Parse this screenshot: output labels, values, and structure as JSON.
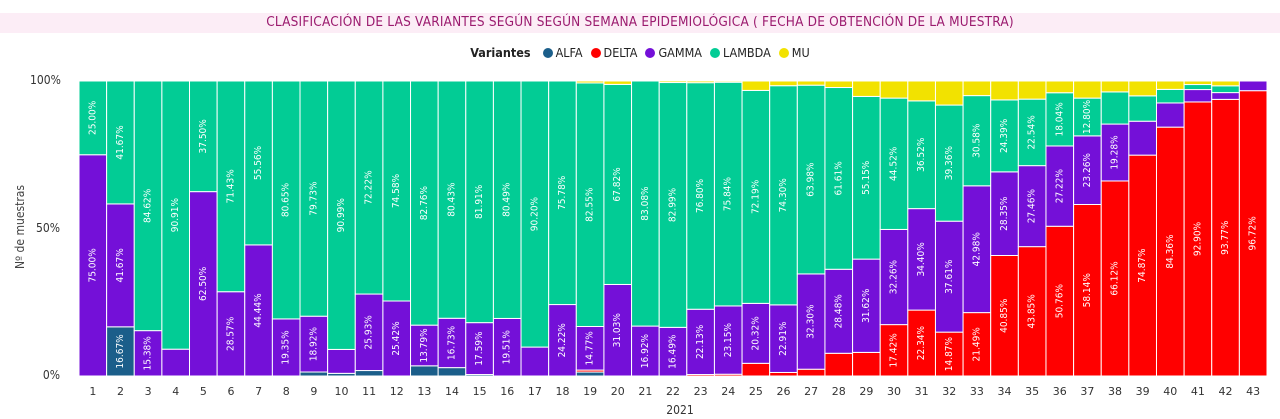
{
  "chart_data": {
    "type": "bar",
    "stacked": "percent",
    "title": "CLASIFICACIÓN DE LAS VARIANTES SEGÚN SEGÚN SEMANA EPIDEMIOLÓGICA ( FECHA DE OBTENCIÓN DE LA MUESTRA)",
    "legend_title": "Variantes",
    "legend_position": "top",
    "xlabel": "2021",
    "ylabel": "Nº de muestras",
    "yticks": [
      "0%",
      "50%",
      "100%"
    ],
    "ylim": [
      0,
      100
    ],
    "grid": false,
    "categories": [
      "1",
      "2",
      "3",
      "4",
      "5",
      "6",
      "7",
      "8",
      "9",
      "10",
      "11",
      "12",
      "13",
      "14",
      "15",
      "16",
      "17",
      "18",
      "19",
      "20",
      "21",
      "22",
      "23",
      "24",
      "25",
      "26",
      "27",
      "28",
      "29",
      "30",
      "31",
      "32",
      "33",
      "34",
      "35",
      "36",
      "37",
      "38",
      "39",
      "40",
      "41",
      "42",
      "43"
    ],
    "series": [
      {
        "name": "ALFA",
        "color": "#1b5e8a",
        "values": [
          0,
          16.67,
          0,
          0,
          0,
          0,
          0,
          0,
          1.35,
          0.9,
          1.85,
          0,
          3.45,
          2.84,
          0.5,
          0,
          0,
          0,
          1.34,
          0,
          0,
          0,
          0,
          0,
          0,
          0,
          0,
          0,
          0,
          0,
          0,
          0,
          0,
          0,
          0,
          0,
          0,
          0,
          0,
          0,
          0,
          0,
          0
        ]
      },
      {
        "name": "DELTA",
        "color": "#ff0000",
        "values": [
          0,
          0,
          0,
          0,
          0,
          0,
          0,
          0,
          0,
          0,
          0,
          0,
          0,
          0,
          0,
          0,
          0,
          0,
          0.67,
          0,
          0,
          0,
          0.5,
          0.6,
          4.3,
          1.2,
          2.3,
          7.7,
          8.0,
          17.42,
          22.34,
          14.87,
          21.49,
          40.85,
          43.85,
          50.76,
          58.14,
          66.12,
          74.87,
          84.36,
          92.9,
          93.77,
          96.72
        ]
      },
      {
        "name": "GAMMA",
        "color": "#7410d8",
        "values": [
          75.0,
          41.67,
          15.38,
          9.09,
          62.5,
          28.57,
          44.44,
          19.35,
          18.92,
          8.11,
          25.93,
          25.42,
          13.79,
          16.73,
          17.59,
          19.51,
          9.8,
          24.22,
          14.77,
          31.03,
          16.92,
          16.49,
          22.13,
          23.15,
          20.32,
          22.91,
          32.3,
          28.48,
          31.62,
          32.26,
          34.4,
          37.61,
          42.98,
          28.35,
          27.46,
          27.22,
          23.26,
          19.28,
          11.5,
          8.2,
          4.2,
          2.3,
          3.28
        ]
      },
      {
        "name": "LAMBDA",
        "color": "#02cc95",
        "values": [
          25.0,
          41.67,
          84.62,
          90.91,
          37.5,
          71.43,
          55.56,
          80.65,
          79.73,
          90.99,
          72.22,
          74.58,
          82.76,
          80.43,
          81.91,
          80.49,
          90.2,
          75.78,
          82.55,
          67.82,
          83.08,
          82.99,
          76.8,
          75.84,
          72.19,
          74.3,
          63.98,
          61.61,
          55.15,
          44.52,
          36.52,
          39.36,
          30.58,
          24.39,
          22.54,
          18.04,
          12.8,
          10.9,
          8.6,
          4.6,
          1.7,
          2.3,
          0
        ]
      },
      {
        "name": "MU",
        "color": "#f2e200",
        "values": [
          0,
          0,
          0,
          0,
          0,
          0,
          0,
          0,
          0,
          0,
          0,
          0,
          0,
          0,
          0,
          0,
          0,
          0,
          0.67,
          1.15,
          0,
          0.52,
          0.57,
          0.41,
          3.19,
          1.59,
          1.42,
          2.21,
          5.23,
          5.8,
          6.74,
          8.16,
          4.95,
          6.41,
          6.15,
          3.98,
          5.8,
          3.7,
          5.03,
          2.84,
          1.2,
          1.63,
          0
        ]
      }
    ]
  }
}
